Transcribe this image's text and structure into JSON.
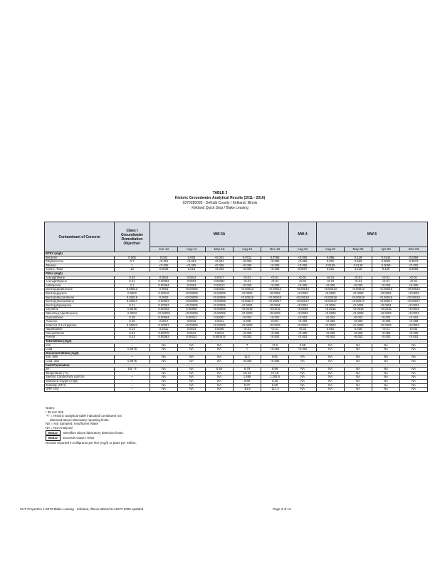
{
  "header": {
    "title": "TABLE 3",
    "subtitle": "Historic Groundwater Analytical Results (2011 - 2016)",
    "site_id": "0370285095 - DeKalb County / Kirkland, Illinois",
    "site_name": "Kirkland Quick Stop / Blake Leasing"
  },
  "table": {
    "col_header": "Contaminant of Concern",
    "objective_header": "Class I Groundwater Remediation Objective¹",
    "wells": [
      {
        "name": "MW-3A",
        "dates": [
          "Jun-14",
          "Aug-14",
          "May-15",
          "Aug-16",
          "Nov-16"
        ]
      },
      {
        "name": "MW-4",
        "dates": [
          "Aug-01"
        ]
      },
      {
        "name": "MW-5",
        "dates": [
          "Aug-01",
          "May-02",
          "Apr-03",
          "Dec-03"
        ]
      }
    ],
    "rows": [
      {
        "section": "BTEX (mg/l)"
      },
      {
        "name": "Benzene",
        "objective": "0.005",
        "values": [
          "0.031",
          "0.003",
          "<0.001",
          "0.0711",
          "0.0768",
          "<0.005",
          "0.055",
          "0.129",
          "0.0144",
          "0.0356"
        ]
      },
      {
        "name": "Ethylbenzene",
        "objective": "0.7",
        "values": [
          "<0.001",
          "<0.001",
          "<0.001",
          "<0.005",
          "<0.005",
          "<0.005",
          "0.001",
          "0.563",
          "0.0004",
          "0.3073"
        ]
      },
      {
        "name": "Toluene",
        "objective": "1",
        "values": [
          "<0.005",
          "<0.005",
          "<0.005",
          "<0.005",
          "<0.005",
          "<0.005",
          "0.0109",
          "0.0138",
          "0.0059",
          "<0.002"
        ]
      },
      {
        "name": "Xylene, Total",
        "objective": "10",
        "values": [
          "0.0036",
          "0.013",
          "<0.003",
          "<0.005",
          "<0.005",
          "0.0007",
          "0.661",
          "3.216",
          "0.160",
          "0.9906"
        ]
      },
      {
        "section": "PNAs (mg/l)"
      },
      {
        "name": "Acenaphthene",
        "objective": "0.42",
        "values": [
          "0.0016",
          "0.0012",
          "0.0017",
          "<0.01",
          "<0.01",
          "<0.01",
          "<0.01",
          "<0.01",
          "<0.01",
          "<0.01"
        ]
      },
      {
        "name": "Acenaphthylene",
        "objective": "0.21",
        "values": [
          "0.00052",
          "0.0003",
          "0.00092",
          "<0.01",
          "<0.01",
          "<0.01",
          "<0.01",
          "<0.01",
          "<0.01",
          "<0.01"
        ]
      },
      {
        "name": "Anthracene",
        "objective": "2.1",
        "values": [
          "0.00084",
          "0.0003",
          "0.00013",
          "<0.005",
          "<0.005",
          "<0.005",
          "<0.005",
          "<0.005",
          "<0.005",
          "<0.005"
        ]
      },
      {
        "name": "Benzo(a)anthracene",
        "objective": "0.00013",
        "values": [
          "0.0001",
          "<0.00005",
          "0.00016",
          "<0.00013",
          "<0.00013",
          "<0.00013",
          "<0.00013",
          "<0.00013",
          "<0.00013",
          "<0.00013"
        ]
      },
      {
        "name": "Benzo(a)pyrene",
        "objective": "0.0002",
        "values": [
          "0.00016",
          "<0.00005",
          "<0.00005",
          "<0.0002",
          "<0.0002",
          "<0.0002",
          "<0.0002",
          "<0.0002",
          "<0.0002",
          "<0.0002"
        ]
      },
      {
        "name": "Benzo(b)fluoranthene",
        "objective": "0.00018",
        "values": [
          "0.0003",
          "<0.00005",
          "<0.00005",
          "<0.00018",
          "<0.00018",
          "<0.00018",
          "<0.00018",
          "<0.00018",
          "<0.00018",
          "<0.00018"
        ]
      },
      {
        "name": "Benzo(k)fluoranthene",
        "objective": "0.00017",
        "values": [
          "0.00023",
          "<0.00005",
          "<0.00005",
          "<0.00017",
          "<0.00017",
          "<0.00017",
          "<0.00017",
          "<0.00017",
          "<0.00017",
          "<0.00017"
        ]
      },
      {
        "name": "Benzo(ghi)perylene",
        "objective": "0.21",
        "values": [
          "0.00063",
          "<0.00005",
          "<0.00005",
          "<0.0004",
          "<0.0004",
          "<0.0004",
          "<0.0004",
          "<0.0004",
          "<0.0004",
          "<0.0004"
        ]
      },
      {
        "name": "Chrysene",
        "objective": "0.0015",
        "values": [
          "0.00016",
          "0.00008",
          "<0.00005",
          "<0.0015",
          "<0.0015",
          "<0.0015",
          "<0.0015",
          "<0.0015",
          "<0.0015",
          "<0.0015"
        ]
      },
      {
        "name": "Dibenzo(a,h)anthracene",
        "objective": "0.0003",
        "values": [
          "<0.00005",
          "<0.00005",
          "<0.00005",
          "<0.0003",
          "<0.0003",
          "<0.0003",
          "<0.0003",
          "<0.0003",
          "<0.0003",
          "<0.0003"
        ]
      },
      {
        "name": "Fluoranthene",
        "objective": "0.28",
        "values": [
          "0.00064",
          "0.00012",
          "0.00007",
          "<0.002",
          "<0.002",
          "<0.002",
          "<0.002",
          "<0.002",
          "<0.002",
          "<0.002"
        ]
      },
      {
        "name": "Fluorene",
        "objective": "0.28",
        "values": [
          "0.0017",
          "0.0016",
          "0.0021",
          "0.005",
          "0.004",
          "<0.005",
          "<0.005",
          "<0.005",
          "<0.005",
          "<0.005"
        ]
      },
      {
        "name": "Indeno(1,2,3-cd)pyrene",
        "objective": "0.00043",
        "values": [
          "0.00007",
          "<0.00005",
          "<0.00005",
          "<0.0003",
          "<0.0003",
          "<0.0003",
          "<0.0003",
          "<0.0003",
          "<0.0003",
          "<0.0003"
        ]
      },
      {
        "name": "Naphthalene",
        "objective": "0.14",
        "values": [
          "0.2011",
          "0.0014",
          "0.0055",
          "<0.01",
          "<0.01",
          "<0.01",
          "0.051",
          "0.016",
          "<0.01",
          "0.042"
        ]
      },
      {
        "name": "Phenanthrene",
        "objective": "0.21",
        "values": [
          "0.00078",
          "0.0012",
          "0.0013",
          "<0.005",
          "<0.005",
          "<0.005",
          "<0.005",
          "<0.005",
          "<0.005",
          "<0.005"
        ]
      },
      {
        "name": "Pyrene",
        "objective": "0.21",
        "values": [
          "0.00063",
          "0.00012",
          "0.000074",
          "<0.002",
          "<0.002",
          "<0.002",
          "<0.002",
          "<0.002",
          "<0.002",
          "<0.002"
        ]
      },
      {
        "section": "Total Metals (mg/l)"
      },
      {
        "name": "Iron",
        "objective": "--",
        "values": [
          "NA",
          "NA",
          "NA",
          "7",
          "11.9",
          "0.98",
          "NA",
          "NA",
          "NA",
          "NA"
        ]
      },
      {
        "name": "Lead",
        "objective": "0.0075",
        "values": [
          "NA",
          "NA",
          "NA",
          "<",
          "<0.002",
          "<0.002",
          "NA",
          "NA",
          "NA",
          "NA"
        ]
      },
      {
        "section": "Dissolved Metals (mg/l)"
      },
      {
        "name": "Iron, diss",
        "objective": "--",
        "values": [
          "NA",
          "NA",
          "NA",
          "11.2",
          "9.61",
          "NA",
          "NA",
          "NA",
          "NA",
          "NA"
        ]
      },
      {
        "name": "Lead, diss",
        "objective": "0.0075",
        "values": [
          "NA",
          "NA",
          "NA",
          "<0.005",
          "<0.005",
          "NA",
          "NA",
          "NA",
          "NA",
          "NA"
        ]
      },
      {
        "section": "Field Parameters"
      },
      {
        "name": "pH",
        "objective": "6.5 - 9",
        "values": [
          "NA",
          "NA",
          "6.90",
          "6.79",
          "6.99",
          "NA",
          "NA",
          "NA",
          "NA",
          "NA"
        ]
      },
      {
        "name": "Temperature (°C)",
        "objective": "--",
        "values": [
          "NA",
          "NA",
          "NA",
          "19.44",
          "17.18",
          "NA",
          "NA",
          "NA",
          "NA",
          "NA"
        ]
      },
      {
        "name": "Specific Conductivity (µS/cm)",
        "objective": "--",
        "values": [
          "NA",
          "NA",
          "NA",
          "1,595",
          "1,353.6",
          "NA",
          "NA",
          "NA",
          "NA",
          "NA"
        ]
      },
      {
        "name": "Dissolved Oxygen (mg/l)",
        "objective": "--",
        "values": [
          "NA",
          "NA",
          "NA",
          "0.89",
          "0.25",
          "NA",
          "NA",
          "NA",
          "NA",
          "NA"
        ]
      },
      {
        "name": "Turbidity (NTU)",
        "objective": "--",
        "values": [
          "NA",
          "NA",
          "NA",
          "0.07",
          "0.09",
          "NA",
          "NA",
          "NA",
          "NA",
          "NA"
        ]
      },
      {
        "name": "ORP (mv)",
        "objective": "--",
        "values": [
          "NA",
          "NA",
          "NA",
          "-81.8",
          "-117.2",
          "NA",
          "NA",
          "NA",
          "NA",
          "NA"
        ]
      }
    ]
  },
  "notes": {
    "heading": "Notes:",
    "items": [
      {
        "text": "¹ 35 IAC 620"
      },
      {
        "text": "\"<\" = Historic analytical table indicated constituent not"
      },
      {
        "text": "detected above laboratory reporting limits.",
        "indent": true
      },
      {
        "text": "NS = Not Sampled, Insufficient Water"
      },
      {
        "text": "NA = Not Analyzed"
      },
      {
        "key": "BOLD",
        "text": "Identifies above laboratory detection limits."
      },
      {
        "key": "BOLD",
        "text": "Exceeds Class I GRO"
      },
      {
        "text": "Results reported in milligrams per liter (mg/l) or parts per million."
      }
    ]
  },
  "footer": {
    "left": "CHT Properties 1-8073 Blake Leasing - Kirkland, Illinois tables/15-16073 3008 updated",
    "page": "Page 3 of 13"
  }
}
